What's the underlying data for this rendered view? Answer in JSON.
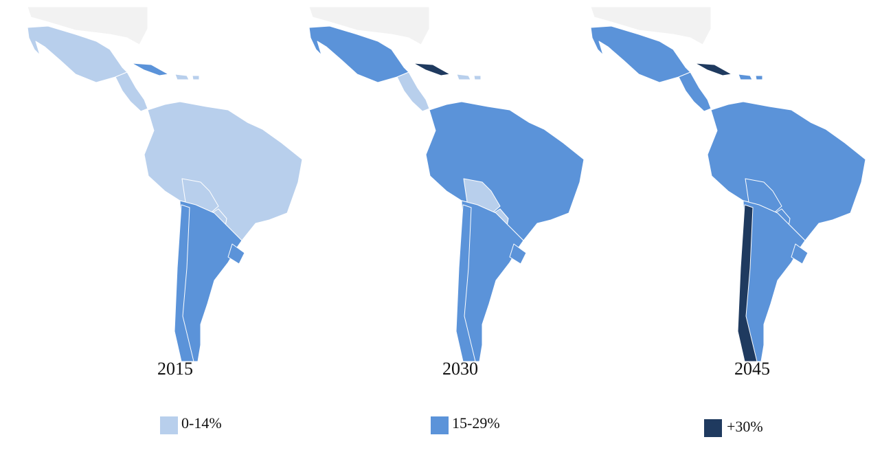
{
  "maps": [
    {
      "label": "2015"
    },
    {
      "label": "2030"
    },
    {
      "label": "2045"
    }
  ],
  "legend": [
    {
      "label": "0-14%",
      "color": "#b8cfec"
    },
    {
      "label": "15-29%",
      "color": "#5b93d9"
    },
    {
      "label": "+30%",
      "color": "#1f3a5f"
    }
  ]
}
